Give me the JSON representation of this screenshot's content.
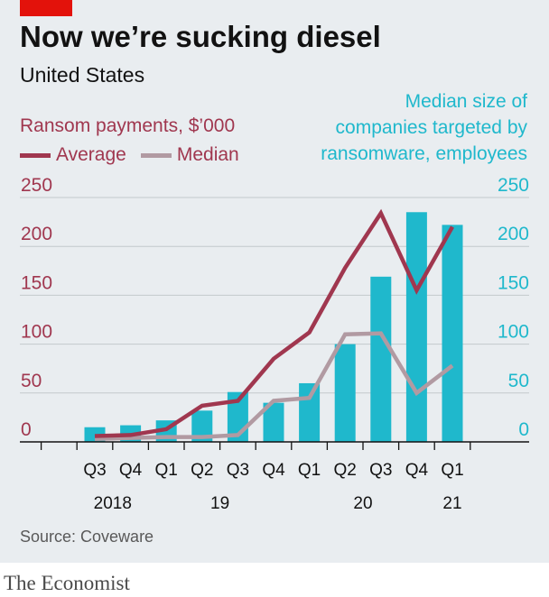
{
  "header": {
    "title": "Now we’re sucking diesel",
    "subtitle": "United States"
  },
  "source": "Source: Coveware",
  "brand": "The Economist",
  "colors": {
    "average": "#a0374f",
    "median": "#b19aa2",
    "bars": "#1fb8cc",
    "brand_red": "#e3120b"
  },
  "chart_data": {
    "type": "bar",
    "categories": [
      "Q3 2018",
      "Q4 2018",
      "Q1 2019",
      "Q2 2019",
      "Q3 2019",
      "Q4 2019",
      "Q1 2020",
      "Q2 2020",
      "Q3 2020",
      "Q4 2020",
      "Q1 2021"
    ],
    "tick_labels": [
      "Q3",
      "Q4",
      "Q1",
      "Q2",
      "Q3",
      "Q4",
      "Q1",
      "Q2",
      "Q3",
      "Q4",
      "Q1"
    ],
    "year_labels": [
      {
        "label": "2018",
        "index": 0.5
      },
      {
        "label": "19",
        "index": 3.5
      },
      {
        "label": "20",
        "index": 7.5
      },
      {
        "label": "21",
        "index": 10
      }
    ],
    "left_axis": {
      "label": "Ransom payments, $’000",
      "ylim": [
        0,
        250
      ],
      "ticks": [
        "0",
        "50",
        "100",
        "150",
        "200",
        "250"
      ]
    },
    "right_axis": {
      "label_lines": [
        "Median size of",
        "companies targeted by",
        "ransomware, employees"
      ],
      "ylim": [
        0,
        250
      ],
      "ticks": [
        "0",
        "50",
        "100",
        "150",
        "200",
        "250"
      ]
    },
    "series": [
      {
        "name": "Average",
        "kind": "line",
        "axis": "left",
        "values": [
          6,
          7,
          13,
          37,
          42,
          85,
          112,
          178,
          234,
          155,
          220
        ]
      },
      {
        "name": "Median",
        "kind": "line",
        "axis": "left",
        "values": [
          3,
          4,
          5,
          5,
          7,
          42,
          45,
          110,
          111,
          50,
          78
        ]
      },
      {
        "name": "Median size of companies targeted by ransomware, employees",
        "kind": "bar",
        "axis": "right",
        "values": [
          15,
          17,
          22,
          32,
          51,
          40,
          60,
          100,
          169,
          235,
          222
        ]
      }
    ],
    "grid": true
  }
}
